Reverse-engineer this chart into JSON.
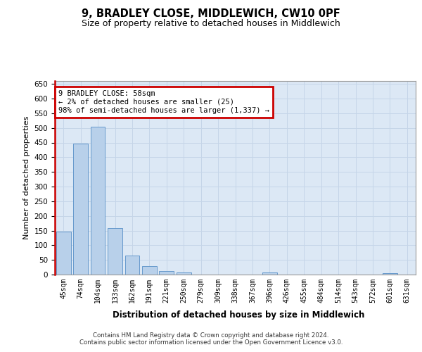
{
  "title": "9, BRADLEY CLOSE, MIDDLEWICH, CW10 0PF",
  "subtitle": "Size of property relative to detached houses in Middlewich",
  "xlabel": "Distribution of detached houses by size in Middlewich",
  "ylabel": "Number of detached properties",
  "categories": [
    "45sqm",
    "74sqm",
    "104sqm",
    "133sqm",
    "162sqm",
    "191sqm",
    "221sqm",
    "250sqm",
    "279sqm",
    "309sqm",
    "338sqm",
    "367sqm",
    "396sqm",
    "426sqm",
    "455sqm",
    "484sqm",
    "514sqm",
    "543sqm",
    "572sqm",
    "601sqm",
    "631sqm"
  ],
  "values": [
    146,
    447,
    505,
    158,
    65,
    30,
    13,
    8,
    0,
    0,
    0,
    0,
    7,
    0,
    0,
    0,
    0,
    0,
    0,
    6,
    0
  ],
  "bar_color": "#b8d0ea",
  "bar_edge_color": "#6699cc",
  "highlight_line_color": "#cc0000",
  "annotation_box_text": "9 BRADLEY CLOSE: 58sqm\n← 2% of detached houses are smaller (25)\n98% of semi-detached houses are larger (1,337) →",
  "ylim": [
    0,
    660
  ],
  "yticks": [
    0,
    50,
    100,
    150,
    200,
    250,
    300,
    350,
    400,
    450,
    500,
    550,
    600,
    650
  ],
  "grid_color": "#c5d5e8",
  "background_color": "#dce8f5",
  "footer_line1": "Contains HM Land Registry data © Crown copyright and database right 2024.",
  "footer_line2": "Contains public sector information licensed under the Open Government Licence v3.0."
}
